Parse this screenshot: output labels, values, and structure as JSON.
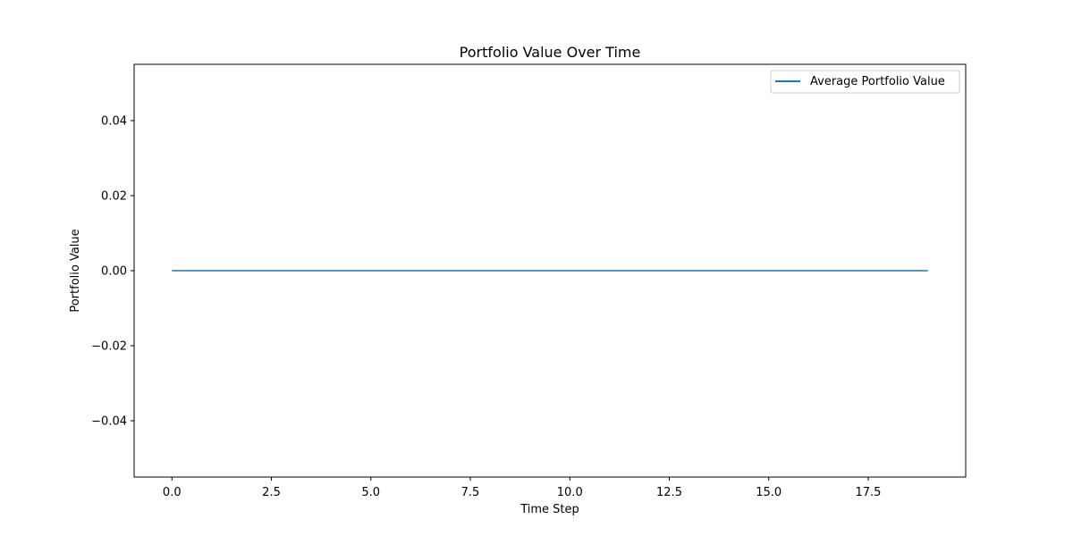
{
  "chart_data": {
    "type": "line",
    "title": "Portfolio Value Over Time",
    "xlabel": "Time Step",
    "ylabel": "Portfolio Value",
    "xlim": [
      -0.95,
      19.95
    ],
    "ylim": [
      -0.055,
      0.055
    ],
    "xticks": [
      0.0,
      2.5,
      5.0,
      7.5,
      10.0,
      12.5,
      15.0,
      17.5
    ],
    "xtick_labels": [
      "0.0",
      "2.5",
      "5.0",
      "7.5",
      "10.0",
      "12.5",
      "15.0",
      "17.5"
    ],
    "yticks": [
      -0.04,
      -0.02,
      0.0,
      0.02,
      0.04
    ],
    "ytick_labels": [
      "−0.04",
      "−0.02",
      "0.00",
      "0.02",
      "0.04"
    ],
    "grid": false,
    "legend_position": "top-right",
    "series": [
      {
        "name": "Average Portfolio Value",
        "color": "#1f77b4",
        "x": [
          0,
          1,
          2,
          3,
          4,
          5,
          6,
          7,
          8,
          9,
          10,
          11,
          12,
          13,
          14,
          15,
          16,
          17,
          18,
          19
        ],
        "y": [
          0,
          0,
          0,
          0,
          0,
          0,
          0,
          0,
          0,
          0,
          0,
          0,
          0,
          0,
          0,
          0,
          0,
          0,
          0,
          0
        ]
      }
    ]
  }
}
